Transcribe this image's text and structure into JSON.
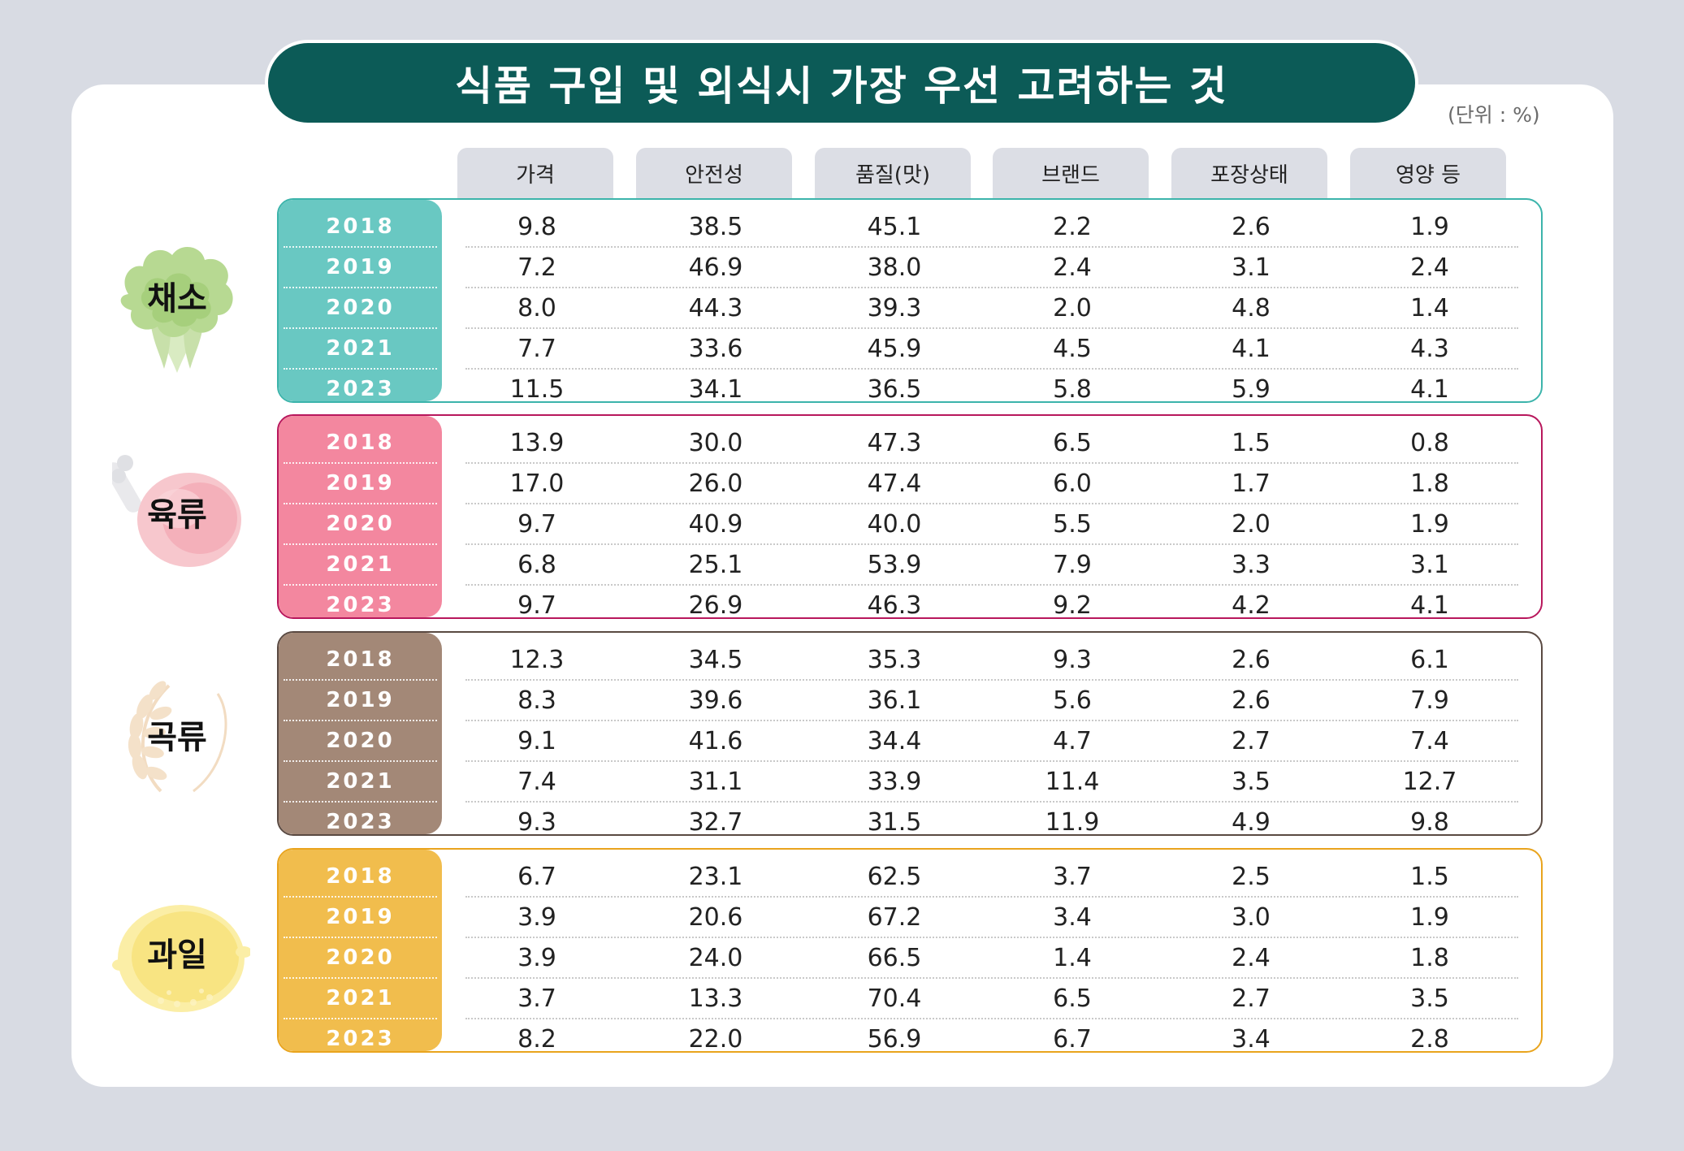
{
  "title": "식품 구입 및 외식시 가장 우선 고려하는 것",
  "unit": "(단위 : %)",
  "colors": {
    "title_bg": "#0c5b57",
    "vegetable": "#69c8c2",
    "meat": "#f3879f",
    "grain": "#a38877",
    "fruit": "#f1bd4d"
  },
  "chart_data": {
    "type": "table",
    "columns": [
      "가격",
      "안전성",
      "품질(맛)",
      "브랜드",
      "포장상태",
      "영양 등"
    ],
    "groups": [
      {
        "name": "채소",
        "icon": "lettuce-icon",
        "color": "#69c8c2",
        "border": "#3cb4ab",
        "rows": [
          {
            "year": "2018",
            "values": [
              "9.8",
              "38.5",
              "45.1",
              "2.2",
              "2.6",
              "1.9"
            ]
          },
          {
            "year": "2019",
            "values": [
              "7.2",
              "46.9",
              "38.0",
              "2.4",
              "3.1",
              "2.4"
            ]
          },
          {
            "year": "2020",
            "values": [
              "8.0",
              "44.3",
              "39.3",
              "2.0",
              "4.8",
              "1.4"
            ]
          },
          {
            "year": "2021",
            "values": [
              "7.7",
              "33.6",
              "45.9",
              "4.5",
              "4.1",
              "4.3"
            ]
          },
          {
            "year": "2023",
            "values": [
              "11.5",
              "34.1",
              "36.5",
              "5.8",
              "5.9",
              "4.1"
            ]
          }
        ]
      },
      {
        "name": "육류",
        "icon": "ham-icon",
        "color": "#f3879f",
        "border": "#b8175c",
        "rows": [
          {
            "year": "2018",
            "values": [
              "13.9",
              "30.0",
              "47.3",
              "6.5",
              "1.5",
              "0.8"
            ]
          },
          {
            "year": "2019",
            "values": [
              "17.0",
              "26.0",
              "47.4",
              "6.0",
              "1.7",
              "1.8"
            ]
          },
          {
            "year": "2020",
            "values": [
              "9.7",
              "40.9",
              "40.0",
              "5.5",
              "2.0",
              "1.9"
            ]
          },
          {
            "year": "2021",
            "values": [
              "6.8",
              "25.1",
              "53.9",
              "7.9",
              "3.3",
              "3.1"
            ]
          },
          {
            "year": "2023",
            "values": [
              "9.7",
              "26.9",
              "46.3",
              "9.2",
              "4.2",
              "4.1"
            ]
          }
        ]
      },
      {
        "name": "곡류",
        "icon": "wheat-icon",
        "color": "#a38877",
        "border": "#5a4a42",
        "rows": [
          {
            "year": "2018",
            "values": [
              "12.3",
              "34.5",
              "35.3",
              "9.3",
              "2.6",
              "6.1"
            ]
          },
          {
            "year": "2019",
            "values": [
              "8.3",
              "39.6",
              "36.1",
              "5.6",
              "2.6",
              "7.9"
            ]
          },
          {
            "year": "2020",
            "values": [
              "9.1",
              "41.6",
              "34.4",
              "4.7",
              "2.7",
              "7.4"
            ]
          },
          {
            "year": "2021",
            "values": [
              "7.4",
              "31.1",
              "33.9",
              "11.4",
              "3.5",
              "12.7"
            ]
          },
          {
            "year": "2023",
            "values": [
              "9.3",
              "32.7",
              "31.5",
              "11.9",
              "4.9",
              "9.8"
            ]
          }
        ]
      },
      {
        "name": "과일",
        "icon": "lemon-icon",
        "color": "#f1bd4d",
        "border": "#e9a41d",
        "rows": [
          {
            "year": "2018",
            "values": [
              "6.7",
              "23.1",
              "62.5",
              "3.7",
              "2.5",
              "1.5"
            ]
          },
          {
            "year": "2019",
            "values": [
              "3.9",
              "20.6",
              "67.2",
              "3.4",
              "3.0",
              "1.9"
            ]
          },
          {
            "year": "2020",
            "values": [
              "3.9",
              "24.0",
              "66.5",
              "1.4",
              "2.4",
              "1.8"
            ]
          },
          {
            "year": "2021",
            "values": [
              "3.7",
              "13.3",
              "70.4",
              "6.5",
              "2.7",
              "3.5"
            ]
          },
          {
            "year": "2023",
            "values": [
              "8.2",
              "22.0",
              "56.9",
              "6.7",
              "3.4",
              "2.8"
            ]
          }
        ]
      }
    ]
  }
}
